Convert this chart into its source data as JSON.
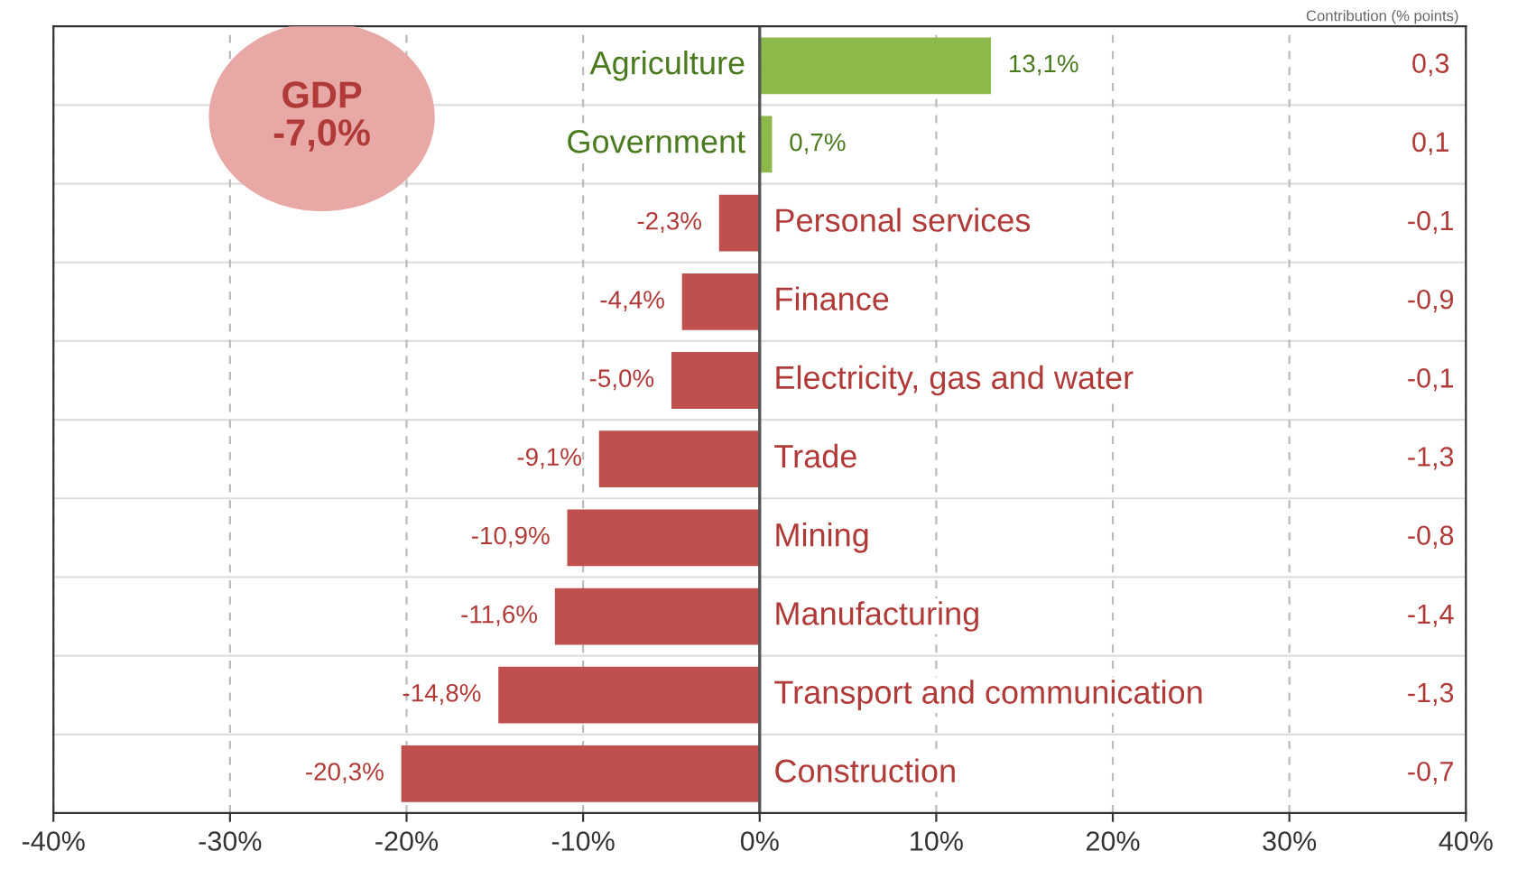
{
  "chart_data": {
    "type": "bar",
    "orientation": "horizontal",
    "categories": [
      "Agriculture",
      "Government",
      "Personal services",
      "Finance",
      "Electricity, gas and water",
      "Trade",
      "Mining",
      "Manufacturing",
      "Transport and communication",
      "Construction"
    ],
    "values": [
      13.1,
      0.7,
      -2.3,
      -4.4,
      -5.0,
      -9.1,
      -10.9,
      -11.6,
      -14.8,
      -20.3
    ],
    "colors": [
      "#8db84a",
      "#8db84a",
      "#c0504d",
      "#c0504d",
      "#c0504d",
      "#c0504d",
      "#c0504d",
      "#c0504d",
      "#c0504d",
      "#c0504d"
    ],
    "value_labels": [
      "13,1%",
      "0,7%",
      "-2,3%",
      "-4,4%",
      "-5,0%",
      "-9,1%",
      "-10,9%",
      "-11,6%",
      "-14,8%",
      "-20,3%"
    ],
    "xlim": [
      -40,
      40
    ],
    "xticks": [
      {
        "value": -40,
        "label": "-40%"
      },
      {
        "value": -30,
        "label": "-30%"
      },
      {
        "value": -20,
        "label": "-20%"
      },
      {
        "value": -10,
        "label": "-10%"
      },
      {
        "value": 0,
        "label": "0%"
      },
      {
        "value": 10,
        "label": "10%"
      },
      {
        "value": 20,
        "label": "20%"
      },
      {
        "value": 30,
        "label": "30%"
      },
      {
        "value": 40,
        "label": "40%"
      }
    ],
    "grid": "x",
    "tick_labels": "x",
    "annotations": [
      "Contribution (% points)",
      "GDP\n-7,0%",
      "0,3",
      "0,1",
      "-0,1",
      "-0,9",
      "-0,1",
      "-1,3",
      "-0,8",
      "-1,4",
      "-1,3",
      "-0,7"
    ]
  }
}
